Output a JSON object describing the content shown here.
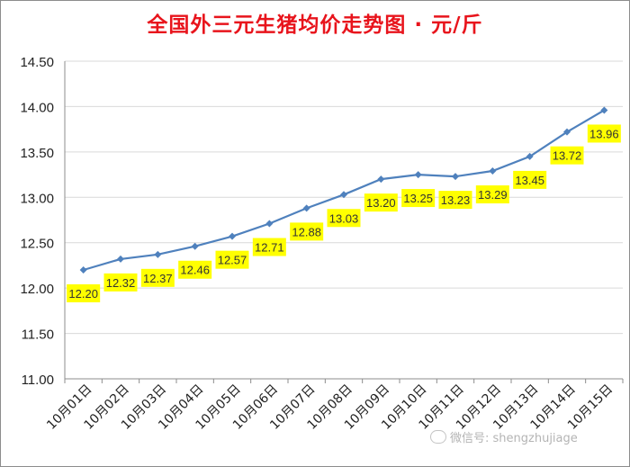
{
  "chart_data": {
    "type": "line",
    "title": "全国外三元生猪均价走势图 · 元/斤",
    "categories": [
      "10月01日",
      "10月02日",
      "10月03日",
      "10月04日",
      "10月05日",
      "10月06日",
      "10月07日",
      "10月08日",
      "10月09日",
      "10月10日",
      "10月11日",
      "10月12日",
      "10月13日",
      "10月14日",
      "10月15日"
    ],
    "series": [
      {
        "values": [
          12.2,
          12.32,
          12.37,
          12.46,
          12.57,
          12.71,
          12.88,
          13.03,
          13.2,
          13.25,
          13.23,
          13.29,
          13.45,
          13.72,
          13.96
        ]
      }
    ],
    "data_labels": [
      "12.20",
      "12.32",
      "12.37",
      "12.46",
      "12.57",
      "12.71",
      "12.88",
      "13.03",
      "13.20",
      "13.25",
      "13.23",
      "13.29",
      "13.45",
      "13.72",
      "13.96"
    ],
    "ylim": [
      11.0,
      14.5
    ],
    "yticks": [
      "11.00",
      "11.50",
      "12.00",
      "12.50",
      "13.00",
      "13.50",
      "14.00",
      "14.50"
    ],
    "xlabel": "",
    "ylabel": "",
    "grid": true,
    "legend": "none",
    "colors": {
      "line": "#4f81bd",
      "marker": "#4f81bd",
      "label_bg": "#ffff00",
      "title": "#e8141c",
      "grid": "#d9d9d9"
    }
  },
  "watermark": {
    "text": "微信号: shengzhujiage",
    "icon": "wechat-icon"
  }
}
